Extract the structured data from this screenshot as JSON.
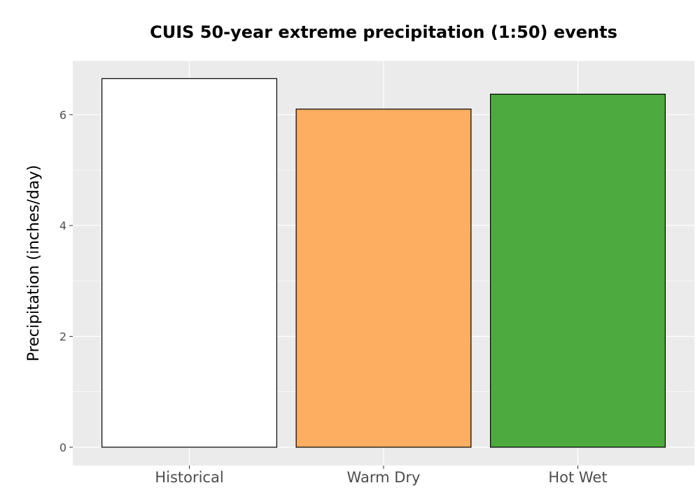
{
  "chart_data": {
    "type": "bar",
    "title": "CUIS 50-year extreme precipitation (1:50) events",
    "xlabel": "",
    "ylabel": "Precipitation (inches/day)",
    "categories": [
      "Historical",
      "Warm Dry",
      "Hot Wet"
    ],
    "values": [
      6.65,
      6.1,
      6.37
    ],
    "bar_colors": [
      "#ffffff",
      "#fdae61",
      "#4daa3f"
    ],
    "bar_outline_color": "#000000",
    "panel_background": "#ebebeb",
    "gridline_color": "#ffffff",
    "y_ticks": [
      0,
      2,
      4,
      6
    ],
    "ylim": [
      -0.33,
      6.97
    ],
    "grid": true,
    "legend": false
  }
}
